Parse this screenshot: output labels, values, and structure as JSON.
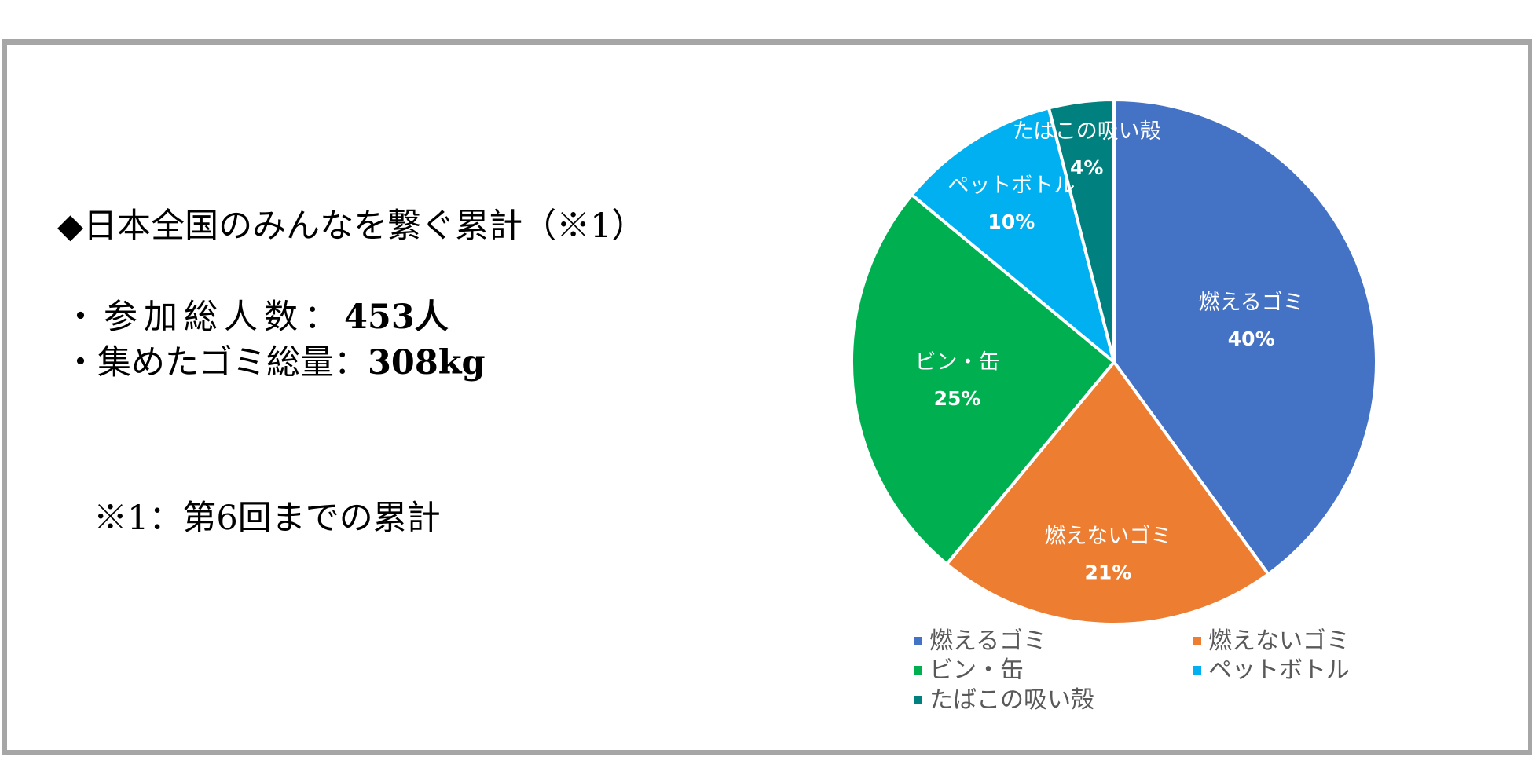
{
  "info": {
    "heading": "◆日本全国のみんなを繋ぐ累計（※1）",
    "stats": [
      {
        "label": "・参加総人数：",
        "value": "453人"
      },
      {
        "label": "・集めたゴミ総量：",
        "value": "308kg"
      }
    ],
    "note": "※1：第6回までの累計"
  },
  "chart_data": {
    "type": "pie",
    "start_angle_deg": 0,
    "direction": "clockwise",
    "legend_position": "bottom",
    "slices": [
      {
        "label": "燃えるゴミ",
        "value": 40,
        "display": "40%",
        "color": "#4472C4"
      },
      {
        "label": "燃えないゴミ",
        "value": 21,
        "display": "21%",
        "color": "#ED7D31"
      },
      {
        "label": "ビン・缶",
        "value": 25,
        "display": "25%",
        "color": "#00B050"
      },
      {
        "label": "ペットボトル",
        "value": 10,
        "display": "10%",
        "color": "#00B0F0"
      },
      {
        "label": "たばこの吸い殻",
        "value": 4,
        "display": "4%",
        "color": "#00807F"
      }
    ]
  }
}
